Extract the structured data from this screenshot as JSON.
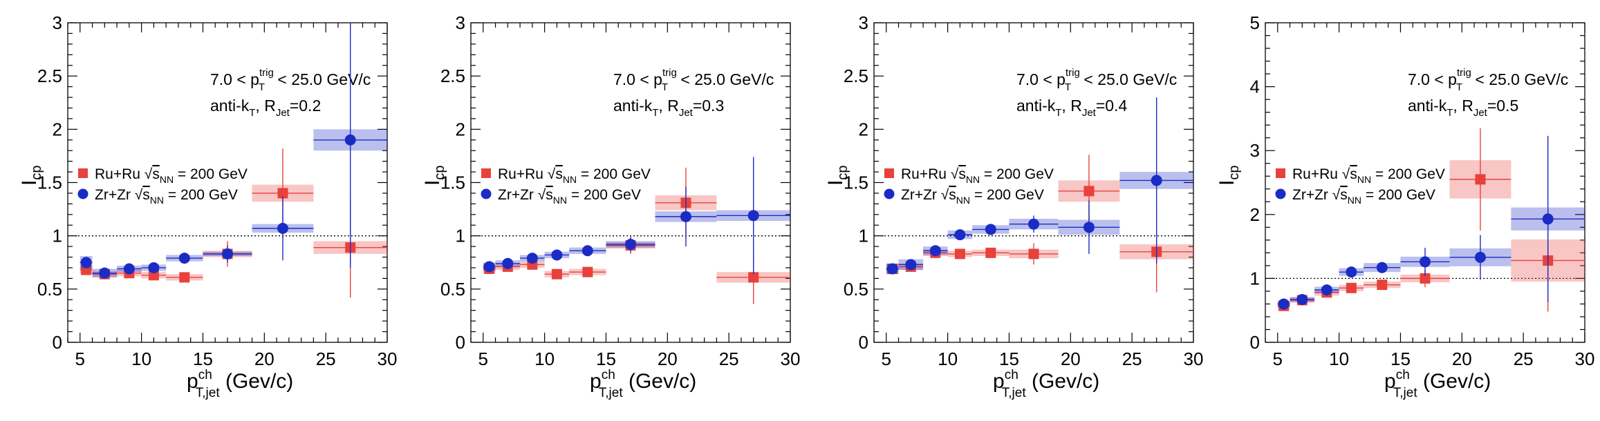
{
  "chart_data": [
    {
      "type": "scatter",
      "title": "",
      "xlabel": "p^ch_T,jet (Gev/c)",
      "xlabel_parts": {
        "main": "p",
        "sup": "ch",
        "sub": "T,jet",
        "unit": " (Gev/c)"
      },
      "ylabel": "I_cp",
      "ylabel_parts": {
        "main": "I",
        "sub": "cp"
      },
      "xlim": [
        4,
        30
      ],
      "ylim": [
        0,
        3
      ],
      "xticks": [
        "5",
        "10",
        "15",
        "20",
        "25",
        "30"
      ],
      "yticks": [
        "0",
        "0.5",
        "1",
        "1.5",
        "2",
        "2.5",
        "3"
      ],
      "reference_line": 1,
      "grid": false,
      "legend_position": "left-middle",
      "annotation_trig": {
        "pre": "7.0 < p",
        "sup": "trig",
        "sub": "T",
        "post": " < 25.0 GeV/c"
      },
      "annotation_jet": {
        "pre": "anti-k",
        "sub1": "T",
        "mid": ", R",
        "sub2": "Jet",
        "post": "=0.2"
      },
      "series": [
        {
          "name": "Ru+Ru √s_NN = 200 GeV",
          "name_parts": {
            "pre": "Ru+Ru ",
            "sqrt": "s",
            "sub": "NN",
            "post": " = 200 GeV"
          },
          "color": "#e8413c",
          "marker": "square",
          "points": [
            {
              "x": 5.5,
              "y": 0.68,
              "xlo": 5,
              "xhi": 6,
              "sys": 0.04,
              "stat": 0.02
            },
            {
              "x": 7,
              "y": 0.64,
              "xlo": 6,
              "xhi": 8,
              "sys": 0.03,
              "stat": 0.02
            },
            {
              "x": 9,
              "y": 0.65,
              "xlo": 8,
              "xhi": 10,
              "sys": 0.03,
              "stat": 0.03
            },
            {
              "x": 11,
              "y": 0.63,
              "xlo": 10,
              "xhi": 12,
              "sys": 0.03,
              "stat": 0.03
            },
            {
              "x": 13.5,
              "y": 0.61,
              "xlo": 12,
              "xhi": 15,
              "sys": 0.03,
              "stat": 0.04
            },
            {
              "x": 17,
              "y": 0.83,
              "xlo": 15,
              "xhi": 19,
              "sys": 0.03,
              "stat": 0.12
            },
            {
              "x": 21.5,
              "y": 1.4,
              "xlo": 19,
              "xhi": 24,
              "sys": 0.08,
              "stat": 0.42
            },
            {
              "x": 27,
              "y": 0.89,
              "xlo": 24,
              "xhi": 30,
              "sys": 0.06,
              "stat": 0.47
            }
          ]
        },
        {
          "name": "Zr+Zr √s_NN = 200 GeV",
          "name_parts": {
            "pre": "Zr+Zr ",
            "sqrt": "s",
            "sub": "NN",
            "post": " = 200 GeV"
          },
          "color": "#1a2cc4",
          "marker": "circle",
          "points": [
            {
              "x": 5.5,
              "y": 0.75,
              "xlo": 5,
              "xhi": 6,
              "sys": 0.06,
              "stat": 0.02
            },
            {
              "x": 7,
              "y": 0.65,
              "xlo": 6,
              "xhi": 8,
              "sys": 0.04,
              "stat": 0.02
            },
            {
              "x": 9,
              "y": 0.69,
              "xlo": 8,
              "xhi": 10,
              "sys": 0.03,
              "stat": 0.03
            },
            {
              "x": 11,
              "y": 0.7,
              "xlo": 10,
              "xhi": 12,
              "sys": 0.03,
              "stat": 0.03
            },
            {
              "x": 13.5,
              "y": 0.79,
              "xlo": 12,
              "xhi": 15,
              "sys": 0.03,
              "stat": 0.05
            },
            {
              "x": 17,
              "y": 0.83,
              "xlo": 15,
              "xhi": 19,
              "sys": 0.02,
              "stat": 0.08
            },
            {
              "x": 21.5,
              "y": 1.07,
              "xlo": 19,
              "xhi": 24,
              "sys": 0.04,
              "stat": 0.3
            },
            {
              "x": 27,
              "y": 1.9,
              "xlo": 24,
              "xhi": 30,
              "sys": 0.1,
              "stat": 1.2
            }
          ]
        }
      ]
    },
    {
      "type": "scatter",
      "title": "",
      "xlabel": "p^ch_T,jet (Gev/c)",
      "xlabel_parts": {
        "main": "p",
        "sup": "ch",
        "sub": "T,jet",
        "unit": " (Gev/c)"
      },
      "ylabel": "I_cp",
      "ylabel_parts": {
        "main": "I",
        "sub": "cp"
      },
      "xlim": [
        4,
        30
      ],
      "ylim": [
        0,
        3
      ],
      "xticks": [
        "5",
        "10",
        "15",
        "20",
        "25",
        "30"
      ],
      "yticks": [
        "0",
        "0.5",
        "1",
        "1.5",
        "2",
        "2.5",
        "3"
      ],
      "reference_line": 1,
      "grid": false,
      "legend_position": "left-middle",
      "annotation_trig": {
        "pre": "7.0 < p",
        "sup": "trig",
        "sub": "T",
        "post": " < 25.0 GeV/c"
      },
      "annotation_jet": {
        "pre": "anti-k",
        "sub1": "T",
        "mid": ", R",
        "sub2": "Jet",
        "post": "=0.3"
      },
      "series": [
        {
          "name": "Ru+Ru √s_NN = 200 GeV",
          "name_parts": {
            "pre": "Ru+Ru ",
            "sqrt": "s",
            "sub": "NN",
            "post": " = 200 GeV"
          },
          "color": "#e8413c",
          "marker": "square",
          "points": [
            {
              "x": 5.5,
              "y": 0.69,
              "xlo": 5,
              "xhi": 6,
              "sys": 0.04,
              "stat": 0.02
            },
            {
              "x": 7,
              "y": 0.71,
              "xlo": 6,
              "xhi": 8,
              "sys": 0.03,
              "stat": 0.02
            },
            {
              "x": 9,
              "y": 0.73,
              "xlo": 8,
              "xhi": 10,
              "sys": 0.03,
              "stat": 0.03
            },
            {
              "x": 11,
              "y": 0.64,
              "xlo": 10,
              "xhi": 12,
              "sys": 0.03,
              "stat": 0.03
            },
            {
              "x": 13.5,
              "y": 0.66,
              "xlo": 12,
              "xhi": 15,
              "sys": 0.03,
              "stat": 0.03
            },
            {
              "x": 17,
              "y": 0.91,
              "xlo": 15,
              "xhi": 19,
              "sys": 0.03,
              "stat": 0.08
            },
            {
              "x": 21.5,
              "y": 1.31,
              "xlo": 19,
              "xhi": 24,
              "sys": 0.07,
              "stat": 0.33
            },
            {
              "x": 27,
              "y": 0.61,
              "xlo": 24,
              "xhi": 30,
              "sys": 0.05,
              "stat": 0.25
            }
          ]
        },
        {
          "name": "Zr+Zr √s_NN = 200 GeV",
          "name_parts": {
            "pre": "Zr+Zr ",
            "sqrt": "s",
            "sub": "NN",
            "post": " = 200 GeV"
          },
          "color": "#1a2cc4",
          "marker": "circle",
          "points": [
            {
              "x": 5.5,
              "y": 0.71,
              "xlo": 5,
              "xhi": 6,
              "sys": 0.04,
              "stat": 0.02
            },
            {
              "x": 7,
              "y": 0.74,
              "xlo": 6,
              "xhi": 8,
              "sys": 0.03,
              "stat": 0.02
            },
            {
              "x": 9,
              "y": 0.79,
              "xlo": 8,
              "xhi": 10,
              "sys": 0.03,
              "stat": 0.03
            },
            {
              "x": 11,
              "y": 0.82,
              "xlo": 10,
              "xhi": 12,
              "sys": 0.03,
              "stat": 0.03
            },
            {
              "x": 13.5,
              "y": 0.86,
              "xlo": 12,
              "xhi": 15,
              "sys": 0.03,
              "stat": 0.04
            },
            {
              "x": 17,
              "y": 0.92,
              "xlo": 15,
              "xhi": 19,
              "sys": 0.03,
              "stat": 0.07
            },
            {
              "x": 21.5,
              "y": 1.18,
              "xlo": 19,
              "xhi": 24,
              "sys": 0.05,
              "stat": 0.28
            },
            {
              "x": 27,
              "y": 1.19,
              "xlo": 24,
              "xhi": 30,
              "sys": 0.05,
              "stat": 0.55
            }
          ]
        }
      ]
    },
    {
      "type": "scatter",
      "title": "",
      "xlabel": "p^ch_T,jet (Gev/c)",
      "xlabel_parts": {
        "main": "p",
        "sup": "ch",
        "sub": "T,jet",
        "unit": " (Gev/c)"
      },
      "ylabel": "I_cp",
      "ylabel_parts": {
        "main": "I",
        "sub": "cp"
      },
      "xlim": [
        4,
        30
      ],
      "ylim": [
        0,
        3
      ],
      "xticks": [
        "5",
        "10",
        "15",
        "20",
        "25",
        "30"
      ],
      "yticks": [
        "0",
        "0.5",
        "1",
        "1.5",
        "2",
        "2.5",
        "3"
      ],
      "reference_line": 1,
      "grid": false,
      "legend_position": "left-middle",
      "annotation_trig": {
        "pre": "7.0 < p",
        "sup": "trig",
        "sub": "T",
        "post": " < 25.0 GeV/c"
      },
      "annotation_jet": {
        "pre": "anti-k",
        "sub1": "T",
        "mid": ", R",
        "sub2": "Jet",
        "post": "=0.4"
      },
      "series": [
        {
          "name": "Ru+Ru √s_NN = 200 GeV",
          "name_parts": {
            "pre": "Ru+Ru ",
            "sqrt": "s",
            "sub": "NN",
            "post": " = 200 GeV"
          },
          "color": "#e8413c",
          "marker": "square",
          "points": [
            {
              "x": 5.5,
              "y": 0.69,
              "xlo": 5,
              "xhi": 6,
              "sys": 0.04,
              "stat": 0.02
            },
            {
              "x": 7,
              "y": 0.71,
              "xlo": 6,
              "xhi": 8,
              "sys": 0.03,
              "stat": 0.02
            },
            {
              "x": 9,
              "y": 0.84,
              "xlo": 8,
              "xhi": 10,
              "sys": 0.03,
              "stat": 0.03
            },
            {
              "x": 11,
              "y": 0.83,
              "xlo": 10,
              "xhi": 12,
              "sys": 0.03,
              "stat": 0.03
            },
            {
              "x": 13.5,
              "y": 0.84,
              "xlo": 12,
              "xhi": 15,
              "sys": 0.03,
              "stat": 0.04
            },
            {
              "x": 17,
              "y": 0.83,
              "xlo": 15,
              "xhi": 19,
              "sys": 0.04,
              "stat": 0.1
            },
            {
              "x": 21.5,
              "y": 1.42,
              "xlo": 19,
              "xhi": 24,
              "sys": 0.1,
              "stat": 0.34
            },
            {
              "x": 27,
              "y": 0.85,
              "xlo": 24,
              "xhi": 30,
              "sys": 0.07,
              "stat": 0.38
            }
          ]
        },
        {
          "name": "Zr+Zr √s_NN = 200 GeV",
          "name_parts": {
            "pre": "Zr+Zr ",
            "sqrt": "s",
            "sub": "NN",
            "post": " = 200 GeV"
          },
          "color": "#1a2cc4",
          "marker": "circle",
          "points": [
            {
              "x": 5.5,
              "y": 0.69,
              "xlo": 5,
              "xhi": 6,
              "sys": 0.05,
              "stat": 0.02
            },
            {
              "x": 7,
              "y": 0.73,
              "xlo": 6,
              "xhi": 8,
              "sys": 0.05,
              "stat": 0.02
            },
            {
              "x": 9,
              "y": 0.86,
              "xlo": 8,
              "xhi": 10,
              "sys": 0.04,
              "stat": 0.03
            },
            {
              "x": 11,
              "y": 1.01,
              "xlo": 10,
              "xhi": 12,
              "sys": 0.04,
              "stat": 0.03
            },
            {
              "x": 13.5,
              "y": 1.06,
              "xlo": 12,
              "xhi": 15,
              "sys": 0.04,
              "stat": 0.05
            },
            {
              "x": 17,
              "y": 1.11,
              "xlo": 15,
              "xhi": 19,
              "sys": 0.05,
              "stat": 0.08
            },
            {
              "x": 21.5,
              "y": 1.08,
              "xlo": 19,
              "xhi": 24,
              "sys": 0.07,
              "stat": 0.25
            },
            {
              "x": 27,
              "y": 1.52,
              "xlo": 24,
              "xhi": 30,
              "sys": 0.08,
              "stat": 0.78
            }
          ]
        }
      ]
    },
    {
      "type": "scatter",
      "title": "",
      "xlabel": "p^ch_T,jet (Gev/c)",
      "xlabel_parts": {
        "main": "p",
        "sup": "ch",
        "sub": "T,jet",
        "unit": " (Gev/c)"
      },
      "ylabel": "I_cp",
      "ylabel_parts": {
        "main": "I",
        "sub": "cp"
      },
      "xlim": [
        4,
        30
      ],
      "ylim": [
        0,
        5
      ],
      "xticks": [
        "5",
        "10",
        "15",
        "20",
        "25",
        "30"
      ],
      "yticks": [
        "0",
        "1",
        "2",
        "3",
        "4",
        "5"
      ],
      "reference_line": 1,
      "grid": false,
      "legend_position": "left-middle",
      "annotation_trig": {
        "pre": "7.0 < p",
        "sup": "trig",
        "sub": "T",
        "post": " < 25.0 GeV/c"
      },
      "annotation_jet": {
        "pre": "anti-k",
        "sub1": "T",
        "mid": ", R",
        "sub2": "Jet",
        "post": "=0.5"
      },
      "series": [
        {
          "name": "Ru+Ru √s_NN = 200 GeV",
          "name_parts": {
            "pre": "Ru+Ru ",
            "sqrt": "s",
            "sub": "NN",
            "post": " = 200 GeV"
          },
          "color": "#e8413c",
          "marker": "square",
          "points": [
            {
              "x": 5.5,
              "y": 0.57,
              "xlo": 5,
              "xhi": 6,
              "sys": 0.05,
              "stat": 0.03
            },
            {
              "x": 7,
              "y": 0.66,
              "xlo": 6,
              "xhi": 8,
              "sys": 0.04,
              "stat": 0.03
            },
            {
              "x": 9,
              "y": 0.78,
              "xlo": 8,
              "xhi": 10,
              "sys": 0.05,
              "stat": 0.04
            },
            {
              "x": 11,
              "y": 0.85,
              "xlo": 10,
              "xhi": 12,
              "sys": 0.05,
              "stat": 0.04
            },
            {
              "x": 13.5,
              "y": 0.9,
              "xlo": 12,
              "xhi": 15,
              "sys": 0.05,
              "stat": 0.05
            },
            {
              "x": 17,
              "y": 1.0,
              "xlo": 15,
              "xhi": 19,
              "sys": 0.06,
              "stat": 0.14
            },
            {
              "x": 21.5,
              "y": 2.55,
              "xlo": 19,
              "xhi": 24,
              "sys": 0.3,
              "stat": 0.8
            },
            {
              "x": 27,
              "y": 1.28,
              "xlo": 24,
              "xhi": 30,
              "sys": 0.33,
              "stat": 0.8
            }
          ]
        },
        {
          "name": "Zr+Zr √s_NN = 200 GeV",
          "name_parts": {
            "pre": "Zr+Zr ",
            "sqrt": "s",
            "sub": "NN",
            "post": " = 200 GeV"
          },
          "color": "#1a2cc4",
          "marker": "circle",
          "points": [
            {
              "x": 5.5,
              "y": 0.6,
              "xlo": 5,
              "xhi": 6,
              "sys": 0.05,
              "stat": 0.03
            },
            {
              "x": 7,
              "y": 0.67,
              "xlo": 6,
              "xhi": 8,
              "sys": 0.04,
              "stat": 0.03
            },
            {
              "x": 9,
              "y": 0.82,
              "xlo": 8,
              "xhi": 10,
              "sys": 0.05,
              "stat": 0.04
            },
            {
              "x": 11,
              "y": 1.1,
              "xlo": 10,
              "xhi": 12,
              "sys": 0.06,
              "stat": 0.05
            },
            {
              "x": 13.5,
              "y": 1.17,
              "xlo": 12,
              "xhi": 15,
              "sys": 0.07,
              "stat": 0.07
            },
            {
              "x": 17,
              "y": 1.26,
              "xlo": 15,
              "xhi": 19,
              "sys": 0.08,
              "stat": 0.22
            },
            {
              "x": 21.5,
              "y": 1.33,
              "xlo": 19,
              "xhi": 24,
              "sys": 0.14,
              "stat": 0.35
            },
            {
              "x": 27,
              "y": 1.93,
              "xlo": 24,
              "xhi": 30,
              "sys": 0.18,
              "stat": 1.3
            }
          ]
        }
      ]
    }
  ]
}
